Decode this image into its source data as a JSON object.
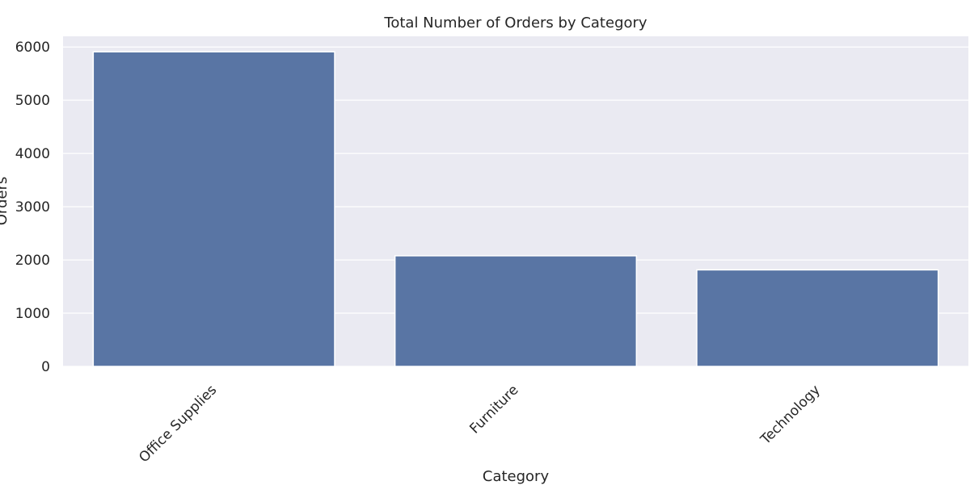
{
  "chart_data": {
    "type": "bar",
    "title": "Total Number of Orders by Category",
    "xlabel": "Category",
    "ylabel": "Orders",
    "categories": [
      "Office Supplies",
      "Furniture",
      "Technology"
    ],
    "values": [
      5909,
      2078,
      1813
    ],
    "ylim": [
      0,
      6200
    ],
    "yticks": [
      0,
      1000,
      2000,
      3000,
      4000,
      5000,
      6000
    ],
    "grid": true,
    "bar_color": "#5975a4",
    "background_color": "#eaeaf2",
    "x_tick_rotation_degrees": 45
  }
}
